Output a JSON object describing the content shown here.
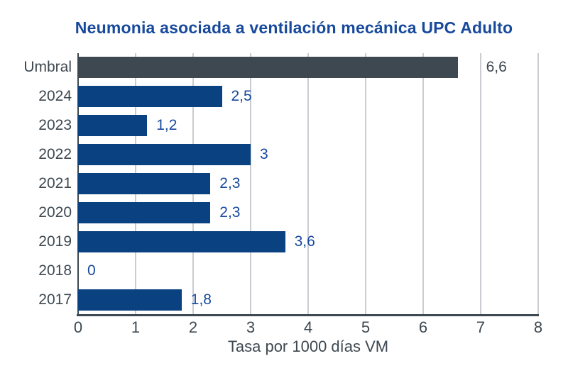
{
  "chart_data": {
    "type": "bar",
    "orientation": "horizontal",
    "title": "Neumonia asociada a ventilación mecánica UPC Adulto",
    "xlabel": "Tasa por 1000 días VM",
    "categories": [
      "Umbral",
      "2024",
      "2023",
      "2022",
      "2021",
      "2020",
      "2019",
      "2018",
      "2017"
    ],
    "values": [
      6.6,
      2.5,
      1.2,
      3,
      2.3,
      2.3,
      3.6,
      0,
      1.8
    ],
    "value_labels": [
      "6,6",
      "2,5",
      "1,2",
      "3",
      "2,3",
      "2,3",
      "3,6",
      "0",
      "1,8"
    ],
    "xlim": [
      0,
      8
    ],
    "xtick_labels": [
      "0",
      "1",
      "2",
      "3",
      "4",
      "5",
      "6",
      "7",
      "8"
    ],
    "grid": true,
    "legend": "none"
  },
  "colors": {
    "title": "#17499c",
    "bar_blue": "#0a4181",
    "umbral_bar": "#3d4851",
    "value_blue": "#17499c",
    "umbral_value": "#3e4850",
    "category_text": "#3e4850",
    "tick_text": "#3e4850",
    "axis_line": "#3e4850",
    "gridline": "#c9cdd1",
    "background": "#ffffff"
  }
}
